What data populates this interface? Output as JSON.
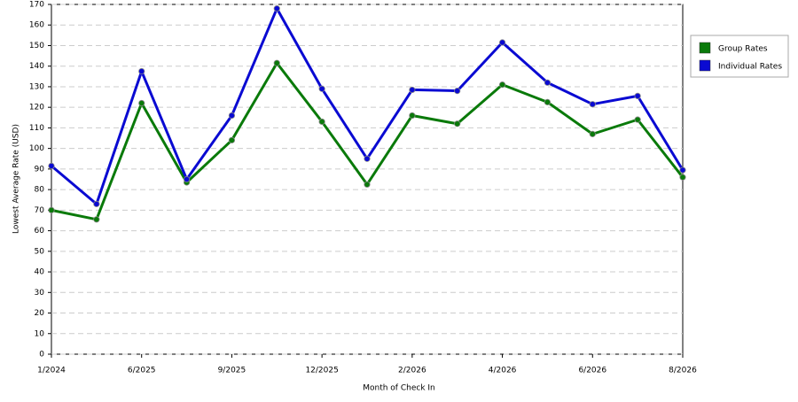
{
  "chart_data": {
    "type": "line",
    "xlabel": "Month of Check In",
    "ylabel": "Lowest Average Rate (USD)",
    "categories": [
      "1/2024",
      null,
      "6/2025",
      null,
      "9/2025",
      null,
      "12/2025",
      null,
      "2/2026",
      null,
      "4/2026",
      null,
      "6/2026",
      null,
      "8/2026"
    ],
    "series": [
      {
        "name": "Group Rates",
        "color": "#0a7a0a",
        "values": [
          70,
          65.5,
          122,
          83.5,
          104,
          141.5,
          113,
          82.5,
          116,
          112,
          131,
          122.5,
          107,
          114,
          86
        ]
      },
      {
        "name": "Individual Rates",
        "color": "#0a0ad2",
        "values": [
          91.5,
          73,
          137.5,
          85,
          116,
          168,
          129,
          95,
          128.5,
          128,
          151.5,
          132,
          121.5,
          125.5,
          89.5
        ]
      }
    ],
    "ylim": [
      0,
      170
    ],
    "yticks": [
      0,
      10,
      20,
      30,
      40,
      50,
      60,
      70,
      80,
      90,
      100,
      110,
      120,
      130,
      140,
      150,
      160,
      170
    ],
    "grid": true,
    "legend": "right"
  }
}
